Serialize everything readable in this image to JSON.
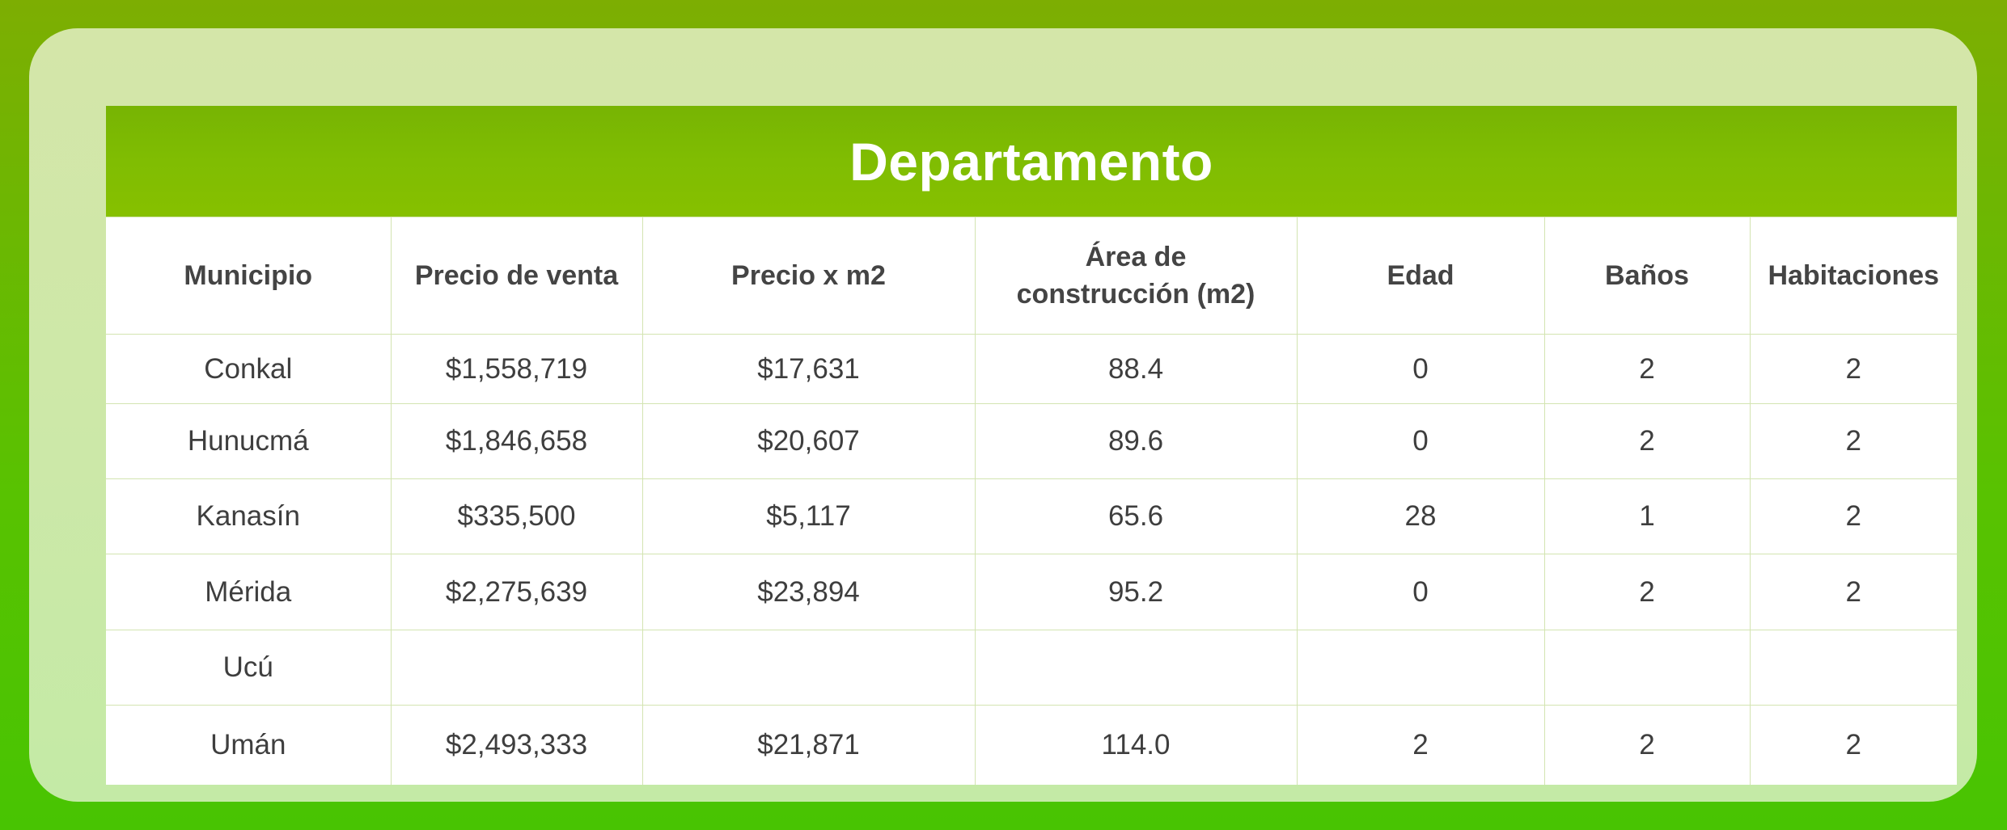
{
  "title": "Departamento",
  "columns": [
    {
      "label": "Municipio"
    },
    {
      "label": "Precio de venta"
    },
    {
      "label": "Precio x m2"
    },
    {
      "label_line1": "Área de",
      "label_line2": "construcción (m2)"
    },
    {
      "label": "Edad"
    },
    {
      "label": "Baños"
    },
    {
      "label": "Habitaciones"
    }
  ],
  "rows": [
    {
      "municipio": "Conkal",
      "precio_venta": "$1,558,719",
      "precio_m2": "$17,631",
      "area": "88.4",
      "edad": "0",
      "banos": "2",
      "habitaciones": "2"
    },
    {
      "municipio": "Hunucmá",
      "precio_venta": "$1,846,658",
      "precio_m2": "$20,607",
      "area": "89.6",
      "edad": "0",
      "banos": "2",
      "habitaciones": "2"
    },
    {
      "municipio": "Kanasín",
      "precio_venta": "$335,500",
      "precio_m2": "$5,117",
      "area": "65.6",
      "edad": "28",
      "banos": "1",
      "habitaciones": "2"
    },
    {
      "municipio": "Mérida",
      "precio_venta": "$2,275,639",
      "precio_m2": "$23,894",
      "area": "95.2",
      "edad": "0",
      "banos": "2",
      "habitaciones": "2"
    },
    {
      "municipio": "Ucú",
      "precio_venta": "",
      "precio_m2": "",
      "area": "",
      "edad": "",
      "banos": "",
      "habitaciones": ""
    },
    {
      "municipio": "Umán",
      "precio_venta": "$2,493,333",
      "precio_m2": "$21,871",
      "area": "114.0",
      "edad": "2",
      "banos": "2",
      "habitaciones": "2"
    }
  ],
  "colors": {
    "accent_green": "#80bd02",
    "card_background": "#cde8a8",
    "border": "#d3e4b1",
    "text": "#3e3e3e"
  }
}
